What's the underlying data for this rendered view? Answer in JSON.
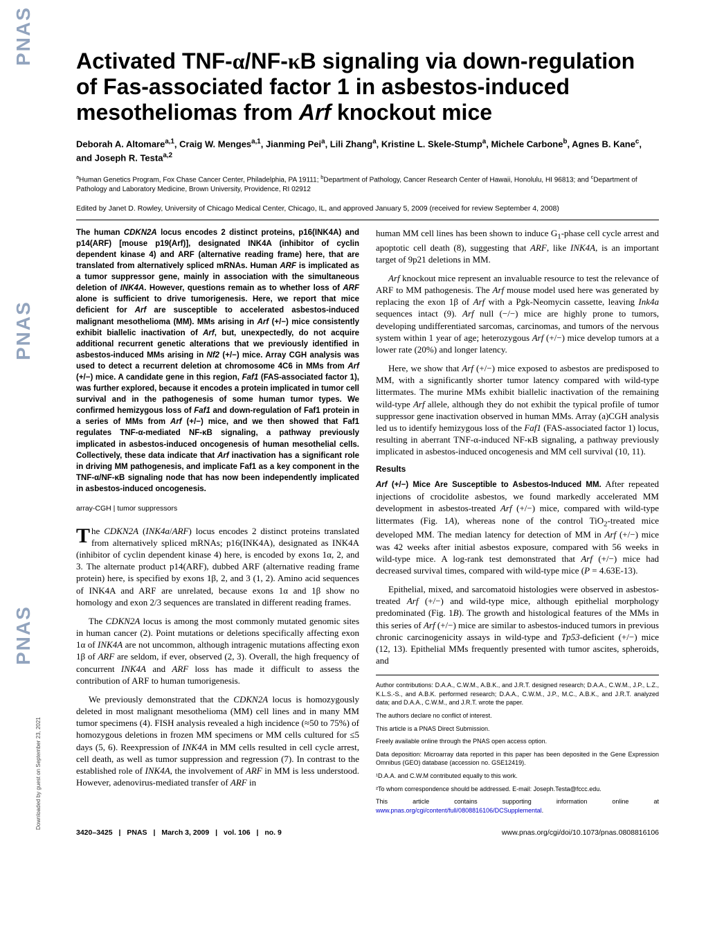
{
  "title": "Activated TNF-α/NF-κB signaling via down-regulation of Fas-associated factor 1 in asbestos-induced mesotheliomas from Arf knockout mice",
  "authors_line": "Deborah A. Altomareᵃ·¹, Craig W. Mengesᵃ·¹, Jianming Peiᵃ, Lili Zhangᵃ, Kristine L. Skele-Stumpᵃ, Michele Carboneᵇ, Agnes B. Kaneᶜ, and Joseph R. Testaᵃ·²",
  "affiliations": "ᵃHuman Genetics Program, Fox Chase Cancer Center, Philadelphia, PA 19111; ᵇDepartment of Pathology, Cancer Research Center of Hawaii, Honolulu, HI 96813; and ᶜDepartment of Pathology and Laboratory Medicine, Brown University, Providence, RI 02912",
  "edited_by": "Edited by Janet D. Rowley, University of Chicago Medical Center, Chicago, IL, and approved January 5, 2009 (received for review September 4, 2008)",
  "abstract": "The human CDKN2A locus encodes 2 distinct proteins, p16(INK4A) and p14(ARF) [mouse p19(Arf)], designated INK4A (inhibitor of cyclin dependent kinase 4) and ARF (alternative reading frame) here, that are translated from alternatively spliced mRNAs. Human ARF is implicated as a tumor suppressor gene, mainly in association with the simultaneous deletion of INK4A. However, questions remain as to whether loss of ARF alone is sufficient to drive tumorigenesis. Here, we report that mice deficient for Arf are susceptible to accelerated asbestos-induced malignant mesothelioma (MM). MMs arising in Arf (+/−) mice consistently exhibit biallelic inactivation of Arf, but, unexpectedly, do not acquire additional recurrent genetic alterations that we previously identified in asbestos-induced MMs arising in Nf2 (+/−) mice. Array CGH analysis was used to detect a recurrent deletion at chromosome 4C6 in MMs from Arf (+/−) mice. A candidate gene in this region, Faf1 (FAS-associated factor 1), was further explored, because it encodes a protein implicated in tumor cell survival and in the pathogenesis of some human tumor types. We confirmed hemizygous loss of Faf1 and down-regulation of Faf1 protein in a series of MMs from Arf (+/−) mice, and we then showed that Faf1 regulates TNF-α-mediated NF-κB signaling, a pathway previously implicated in asbestos-induced oncogenesis of human mesothelial cells. Collectively, these data indicate that Arf inactivation has a significant role in driving MM pathogenesis, and implicate Faf1 as a key component in the TNF-α/NF-κB signaling node that has now been independently implicated in asbestos-induced oncogenesis.",
  "keywords": "array-CGH | tumor suppressors",
  "intro": {
    "p1": "The CDKN2A (INK4a/ARF) locus encodes 2 distinct proteins translated from alternatively spliced mRNAs; p16(INK4A), designated as INK4A (inhibitor of cyclin dependent kinase 4) here, is encoded by exons 1α, 2, and 3. The alternate product p14(ARF), dubbed ARF (alternative reading frame protein) here, is specified by exons 1β, 2, and 3 (1, 2). Amino acid sequences of INK4A and ARF are unrelated, because exons 1α and 1β show no homology and exon 2/3 sequences are translated in different reading frames.",
    "p2": "The CDKN2A locus is among the most commonly mutated genomic sites in human cancer (2). Point mutations or deletions specifically affecting exon 1α of INK4A are not uncommon, although intragenic mutations affecting exon 1β of ARF are seldom, if ever, observed (2, 3). Overall, the high frequency of concurrent INK4A and ARF loss has made it difficult to assess the contribution of ARF to human tumorigenesis.",
    "p3": "We previously demonstrated that the CDKN2A locus is homozygously deleted in most malignant mesothelioma (MM) cell lines and in many MM tumor specimens (4). FISH analysis revealed a high incidence (≈50 to 75%) of homozygous deletions in frozen MM specimens or MM cells cultured for ≤5 days (5, 6). Reexpression of INK4A in MM cells resulted in cell cycle arrest, cell death, as well as tumor suppression and regression (7). In contrast to the established role of INK4A, the involvement of ARF in MM is less understood. However, adenovirus-mediated transfer of ARF in",
    "p4": "human MM cell lines has been shown to induce G₁-phase cell cycle arrest and apoptotic cell death (8), suggesting that ARF, like INK4A, is an important target of 9p21 deletions in MM.",
    "p5": "Arf knockout mice represent an invaluable resource to test the relevance of ARF to MM pathogenesis. The Arf mouse model used here was generated by replacing the exon 1β of Arf with a Pgk-Neomycin cassette, leaving Ink4a sequences intact (9). Arf null (−/−) mice are highly prone to tumors, developing undifferentiated sarcomas, carcinomas, and tumors of the nervous system within 1 year of age; heterozygous Arf (+/−) mice develop tumors at a lower rate (20%) and longer latency.",
    "p6": "Here, we show that Arf (+/−) mice exposed to asbestos are predisposed to MM, with a significantly shorter tumor latency compared with wild-type littermates. The murine MMs exhibit biallelic inactivation of the remaining wild-type Arf allele, although they do not exhibit the typical profile of tumor suppressor gene inactivation observed in human MMs. Array (a)CGH analysis led us to identify hemizygous loss of the Faf1 (FAS-associated factor 1) locus, resulting in aberrant TNF-α-induced NF-κB signaling, a pathway previously implicated in asbestos-induced oncogenesis and MM cell survival (10, 11)."
  },
  "results": {
    "heading": "Results",
    "sub1_head": "Arf (+/−) Mice Are Susceptible to Asbestos-Induced MM.",
    "sub1_body": " After repeated injections of crocidolite asbestos, we found markedly accelerated MM development in asbestos-treated Arf (+/−) mice, compared with wild-type littermates (Fig. 1A), whereas none of the control TiO₂-treated mice developed MM. The median latency for detection of MM in Arf (+/−) mice was 42 weeks after initial asbestos exposure, compared with 56 weeks in wild-type mice. A log-rank test demonstrated that Arf (+/−) mice had decreased survival times, compared with wild-type mice (P = 4.63E-13).",
    "p2": "Epithelial, mixed, and sarcomatoid histologies were observed in asbestos-treated Arf (+/−) and wild-type mice, although epithelial morphology predominated (Fig. 1B). The growth and histological features of the MMs in this series of Arf (+/−) mice are similar to asbestos-induced tumors in previous chronic carcinogenicity assays in wild-type and Tp53-deficient (+/−) mice (12, 13). Epithelial MMs frequently presented with tumor ascites, spheroids, and"
  },
  "footnotes": {
    "contrib": "Author contributions: D.A.A., C.W.M., A.B.K., and J.R.T. designed research; D.A.A., C.W.M., J.P., L.Z., K.L.S.-S., and A.B.K. performed research; D.A.A., C.W.M., J.P., M.C., A.B.K., and J.R.T. analyzed data; and D.A.A., C.W.M., and J.R.T. wrote the paper.",
    "conflict": "The authors declare no conflict of interest.",
    "direct": "This article is a PNAS Direct Submission.",
    "open": "Freely available online through the PNAS open access option.",
    "data": "Data deposition: Microarray data reported in this paper has been deposited in the Gene Expression Omnibus (GEO) database (accession no. GSE12419).",
    "equal": "¹D.A.A. and C.W.M contributed equally to this work.",
    "corr": "²To whom correspondence should be addressed. E-mail: Joseph.Testa@fccc.edu.",
    "supp_pre": "This article contains supporting information online at ",
    "supp_link": "www.pnas.org/cgi/content/full/0808816106/DCSupplemental",
    "supp_post": "."
  },
  "footer": {
    "pages": "3420–3425",
    "pnas": "PNAS",
    "date": "March 3, 2009",
    "vol": "vol. 106",
    "no": "no. 9",
    "doi": "www.pnas.org/cgi/doi/10.1073/pnas.0808816106"
  },
  "sidebar": {
    "text": "PNAS",
    "download": "Downloaded by guest on September 23, 2021"
  },
  "style": {
    "title_fontsize": 32,
    "body_fontsize": 13,
    "abstract_fontsize": 11.5,
    "footnote_fontsize": 9,
    "link_color": "#0000cc",
    "logo_color": "#3a5a8a"
  }
}
